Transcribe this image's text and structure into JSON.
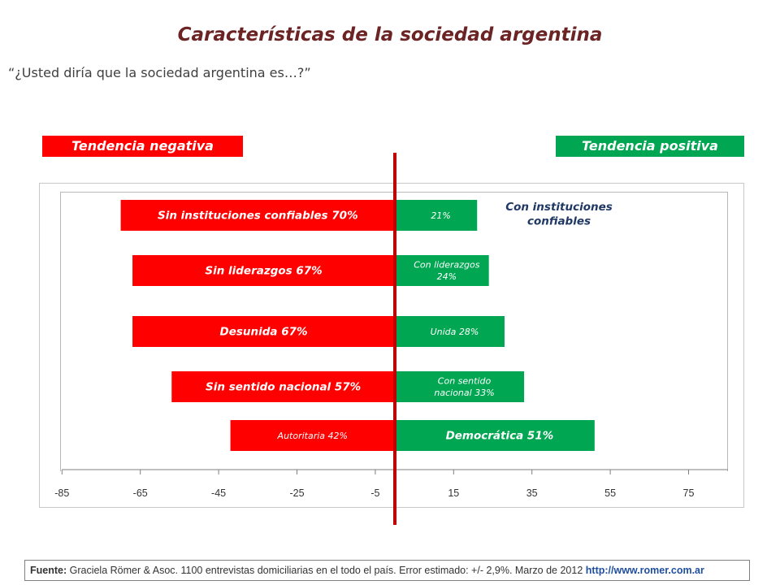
{
  "title": "Características de la sociedad argentina",
  "subtitle": "“¿Usted diría que la sociedad argentina es…?”",
  "tags": {
    "negative": "Tendencia negativa",
    "positive": "Tendencia positiva"
  },
  "source": {
    "label": "Fuente:",
    "text": " Graciela Römer & Asoc. 1100 entrevistas domiciliarias en el todo el país. Error estimado: +/- 2,9%. Marzo de 2012 ",
    "url": "http://www.romer.com.ar"
  },
  "colors": {
    "negative": "#ff0000",
    "positive": "#00a651",
    "divider": "#c00000",
    "annotation": "#1f3864"
  },
  "chart_data": {
    "type": "bar",
    "orientation": "horizontal-diverging",
    "xlim": [
      -85,
      85
    ],
    "xticks": [
      "-85",
      "-65",
      "-45",
      "-25",
      "-5",
      "15",
      "35",
      "55",
      "75"
    ],
    "grid": false,
    "categories": [
      "instituciones confiables",
      "liderazgos",
      "unida",
      "sentido nacional",
      "democrática"
    ],
    "series": [
      {
        "name": "Tendencia negativa",
        "values": [
          -70,
          -67,
          -67,
          -57,
          -42
        ],
        "labels": [
          [
            "Sin instituciones confiables 70%"
          ],
          [
            "Sin liderazgos 67%"
          ],
          [
            "Desunida 67%"
          ],
          [
            "Sin sentido nacional 57%"
          ],
          [
            "Autoritaria 42%"
          ]
        ]
      },
      {
        "name": "Tendencia positiva",
        "values": [
          21,
          24,
          28,
          33,
          51
        ],
        "labels": [
          [
            "21%"
          ],
          [
            "Con liderazgos",
            "24%"
          ],
          [
            "Unida 28%"
          ],
          [
            "Con sentido",
            "nacional 33%"
          ],
          [
            "Democrática 51%"
          ]
        ]
      }
    ],
    "annotations": [
      {
        "text": [
          "Con instituciones",
          "confiables"
        ],
        "category": "instituciones confiables"
      }
    ]
  }
}
